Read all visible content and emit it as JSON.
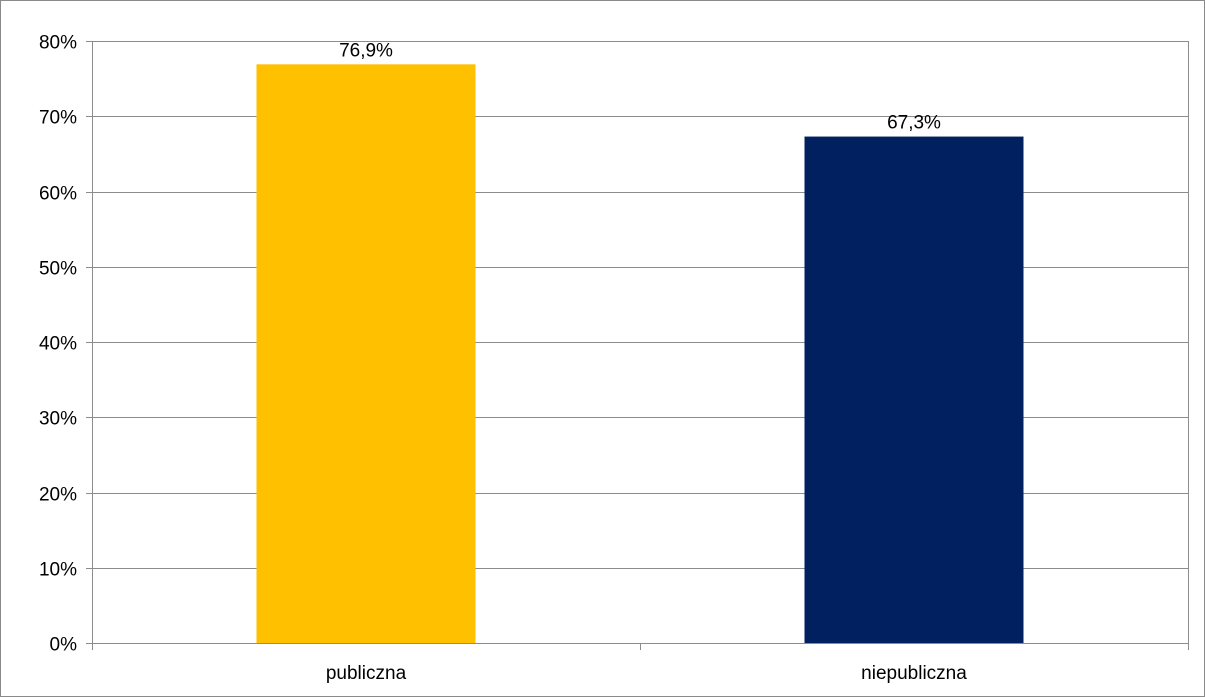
{
  "chart_data": {
    "type": "bar",
    "categories": [
      "publiczna",
      "niepubliczna"
    ],
    "values": [
      76.9,
      67.3
    ],
    "data_labels": [
      "76,9%",
      "67,3%"
    ],
    "bar_colors": [
      "#FFC000",
      "#002060"
    ],
    "ylim": [
      0,
      80
    ],
    "yticks": [
      0,
      10,
      20,
      30,
      40,
      50,
      60,
      70,
      80
    ],
    "ytick_labels": [
      "0%",
      "10%",
      "20%",
      "30%",
      "40%",
      "50%",
      "60%",
      "70%",
      "80%"
    ],
    "grid": true,
    "legend": "none",
    "title": "",
    "xlabel": "",
    "ylabel": ""
  }
}
